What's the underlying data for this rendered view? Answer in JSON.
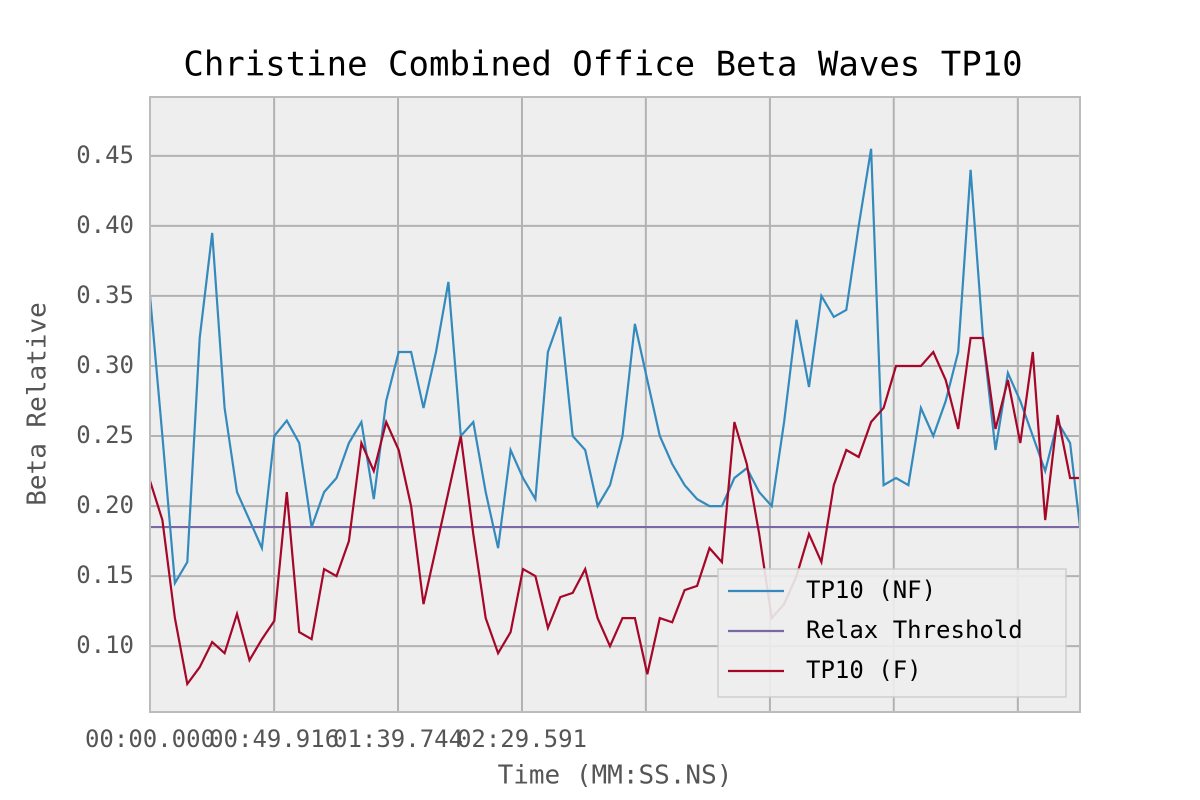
{
  "chart_data": {
    "type": "line",
    "title": "Christine Combined Office Beta Waves TP10",
    "xlabel": "Time (MM:SS.NS)",
    "ylabel": "Beta Relative",
    "x": [
      0,
      5,
      10,
      15,
      20,
      25,
      30,
      35,
      40,
      45,
      50,
      55,
      60,
      65,
      70,
      75,
      80,
      85,
      90,
      95,
      100,
      105,
      110,
      115,
      120,
      125,
      130,
      135,
      140,
      145,
      150,
      155,
      160,
      165,
      170,
      175,
      180,
      185,
      190,
      195,
      200,
      205,
      210,
      215,
      220,
      225,
      230,
      235,
      240,
      245,
      250,
      255,
      260,
      265,
      270,
      275,
      280,
      285,
      290,
      295,
      300,
      305,
      310,
      315,
      320,
      325,
      330,
      335,
      340,
      345,
      350,
      355,
      360,
      365,
      370,
      374
    ],
    "series": [
      {
        "name": "TP10 (NF)",
        "color": "#348abd",
        "values": [
          0.35,
          0.25,
          0.145,
          0.16,
          0.32,
          0.395,
          0.27,
          0.21,
          0.19,
          0.17,
          0.25,
          0.261,
          0.245,
          0.185,
          0.21,
          0.22,
          0.245,
          0.26,
          0.205,
          0.275,
          0.31,
          0.31,
          0.27,
          0.31,
          0.36,
          0.25,
          0.26,
          0.21,
          0.17,
          0.24,
          0.22,
          0.205,
          0.31,
          0.335,
          0.25,
          0.24,
          0.2,
          0.215,
          0.25,
          0.33,
          0.29,
          0.25,
          0.23,
          0.215,
          0.205,
          0.2,
          0.2,
          0.22,
          0.227,
          0.21,
          0.2,
          0.26,
          0.333,
          0.285,
          0.35,
          0.335,
          0.34,
          0.4,
          0.455,
          0.215,
          0.22,
          0.215,
          0.27,
          0.25,
          0.275,
          0.31,
          0.44,
          0.32,
          0.24,
          0.295,
          0.275,
          0.25,
          0.225,
          0.26,
          0.245,
          0.185
        ]
      },
      {
        "name": "TP10 (F)",
        "color": "#a60628",
        "values": [
          0.218,
          0.19,
          0.12,
          0.073,
          0.085,
          0.103,
          0.095,
          0.123,
          0.09,
          0.105,
          0.118,
          0.21,
          0.11,
          0.105,
          0.155,
          0.15,
          0.175,
          0.245,
          0.225,
          0.26,
          0.24,
          0.2,
          0.13,
          0.17,
          0.21,
          0.25,
          0.18,
          0.12,
          0.095,
          0.11,
          0.155,
          0.15,
          0.113,
          0.135,
          0.138,
          0.155,
          0.12,
          0.1,
          0.12,
          0.12,
          0.08,
          0.12,
          0.117,
          0.14,
          0.143,
          0.17,
          0.16,
          0.26,
          0.23,
          0.18,
          0.12,
          0.13,
          0.15,
          0.18,
          0.16,
          0.215,
          0.24,
          0.235,
          0.26,
          0.27,
          0.3,
          0.3,
          0.3,
          0.31,
          0.29,
          0.255,
          0.32,
          0.32,
          0.255,
          0.29,
          0.245,
          0.31,
          0.19,
          0.265,
          0.22,
          0.22
        ]
      }
    ],
    "threshold": {
      "name": "Relax Threshold",
      "color": "#7a68a6",
      "value": 0.185
    },
    "legend_order": [
      "series.0",
      "threshold",
      "series.1"
    ],
    "xlim": [
      0,
      374
    ],
    "xticks": [
      {
        "value": 0,
        "label": "00:00.000"
      },
      {
        "value": 49.916,
        "label": "00:49.916"
      },
      {
        "value": 99.744,
        "label": "01:39.744"
      },
      {
        "value": 149.591,
        "label": "02:29.591"
      },
      {
        "value": 199.4,
        "label": null
      },
      {
        "value": 249.3,
        "label": null
      },
      {
        "value": 299.1,
        "label": null
      },
      {
        "value": 349.0,
        "label": null
      }
    ],
    "ylim": [
      0.053,
      0.492
    ],
    "yticks": [
      {
        "value": 0.1,
        "label": "0.10"
      },
      {
        "value": 0.15,
        "label": "0.15"
      },
      {
        "value": 0.2,
        "label": "0.20"
      },
      {
        "value": 0.25,
        "label": "0.25"
      },
      {
        "value": 0.3,
        "label": "0.30"
      },
      {
        "value": 0.35,
        "label": "0.35"
      },
      {
        "value": 0.4,
        "label": "0.40"
      },
      {
        "value": 0.45,
        "label": "0.45"
      }
    ],
    "grid": true,
    "legend_position": "lower right"
  }
}
